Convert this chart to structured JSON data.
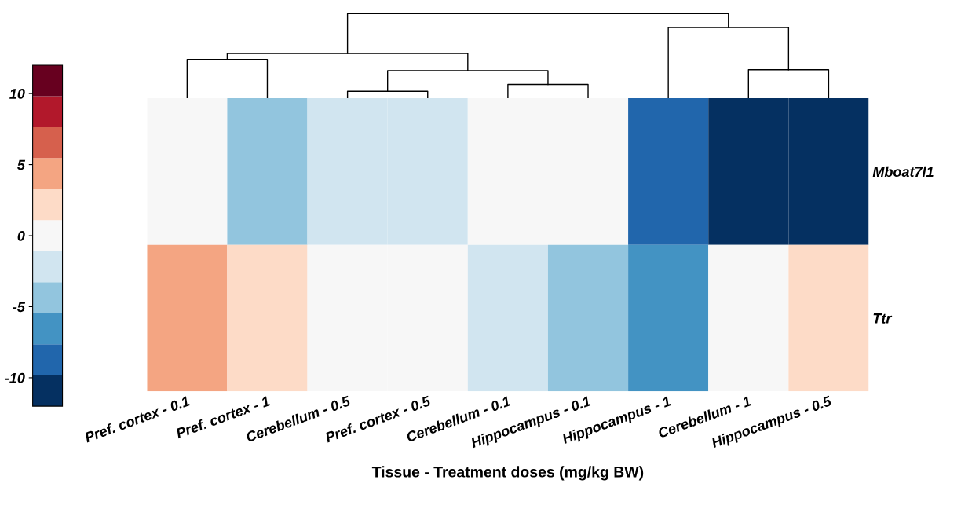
{
  "chart_data": {
    "type": "heatmap",
    "categories": [
      "Pref. cortex - 0.1",
      "Pref. cortex - 1",
      "Cerebellum - 0.5",
      "Pref. cortex - 0.5",
      "Cerebellum - 0.1",
      "Hippocampus - 0.1",
      "Hippocampus - 1",
      "Cerebellum - 1",
      "Hippocampus - 0.5"
    ],
    "y_categories": [
      "Mboat7l1",
      "Ttr"
    ],
    "cells": [
      [
        0,
        -4.4,
        -2.2,
        -2.2,
        0,
        0,
        -8.7,
        -10.9,
        -10.9
      ],
      [
        4.4,
        2.2,
        0,
        0,
        -2.2,
        -4.4,
        -6.5,
        0,
        2.2
      ]
    ],
    "clim": [
      -12,
      12
    ],
    "cticks": [
      -10,
      -5,
      0,
      5,
      10
    ],
    "xlabel": "Tissue - Treatment doses (mg/kg BW)"
  }
}
